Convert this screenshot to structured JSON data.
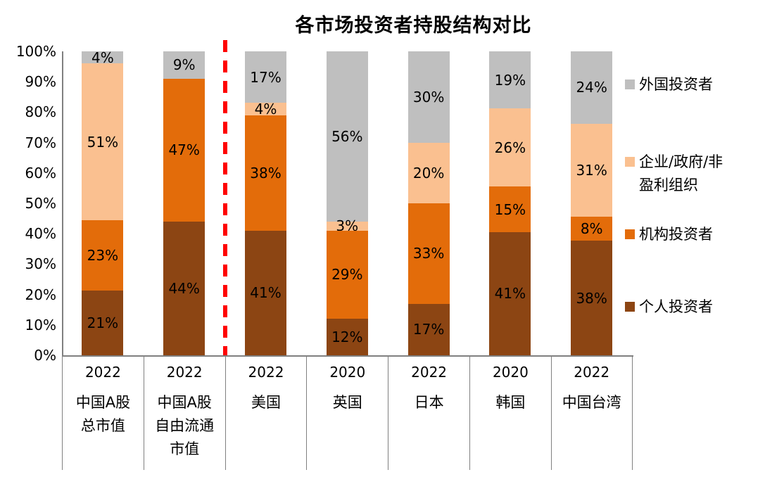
{
  "title": "各市场投资者持股结构对比",
  "chart_data": {
    "type": "bar",
    "stacked": true,
    "unit": "%",
    "title": "各市场投资者持股结构对比",
    "ylim": [
      0,
      100
    ],
    "grid": false,
    "y_ticks": [
      "0%",
      "10%",
      "20%",
      "30%",
      "40%",
      "50%",
      "60%",
      "70%",
      "80%",
      "90%",
      "100%"
    ],
    "categories": [
      {
        "year": "2022",
        "name_lines": [
          "中国A股",
          "总市值"
        ]
      },
      {
        "year": "2022",
        "name_lines": [
          "中国A股",
          "自由流通",
          "市值"
        ]
      },
      {
        "year": "2022",
        "name_lines": [
          "美国"
        ]
      },
      {
        "year": "2020",
        "name_lines": [
          "英国"
        ]
      },
      {
        "year": "2022",
        "name_lines": [
          "日本"
        ]
      },
      {
        "year": "2020",
        "name_lines": [
          "韩国"
        ]
      },
      {
        "year": "2022",
        "name_lines": [
          "中国台湾"
        ]
      }
    ],
    "series": [
      {
        "name": "个人投资者",
        "color": "#8C4513",
        "values": [
          21,
          44,
          41,
          12,
          17,
          41,
          38
        ]
      },
      {
        "name": "机构投资者",
        "color": "#E36C0A",
        "values": [
          23,
          47,
          38,
          29,
          33,
          15,
          8
        ]
      },
      {
        "name": "企业/政府/非盈利组织",
        "color": "#FAC090",
        "values": [
          51,
          0,
          4,
          3,
          20,
          26,
          31
        ]
      },
      {
        "name": "外国投资者",
        "color": "#BFBFBF",
        "values": [
          4,
          9,
          17,
          56,
          30,
          19,
          24
        ]
      }
    ],
    "legend_position": "right",
    "legend": [
      {
        "lines": [
          "外国投资者"
        ],
        "color": "#BFBFBF"
      },
      {
        "lines": [
          "企业/政府/非",
          "盈利组织"
        ],
        "color": "#FAC090"
      },
      {
        "lines": [
          "机构投资者"
        ],
        "color": "#E36C0A"
      },
      {
        "lines": [
          "个人投资者"
        ],
        "color": "#8C4513"
      }
    ],
    "separator": {
      "after_category_index": 1,
      "color": "#FF0000",
      "style": "dashed"
    },
    "axis_color": "#808080",
    "label_color": "#000000"
  }
}
